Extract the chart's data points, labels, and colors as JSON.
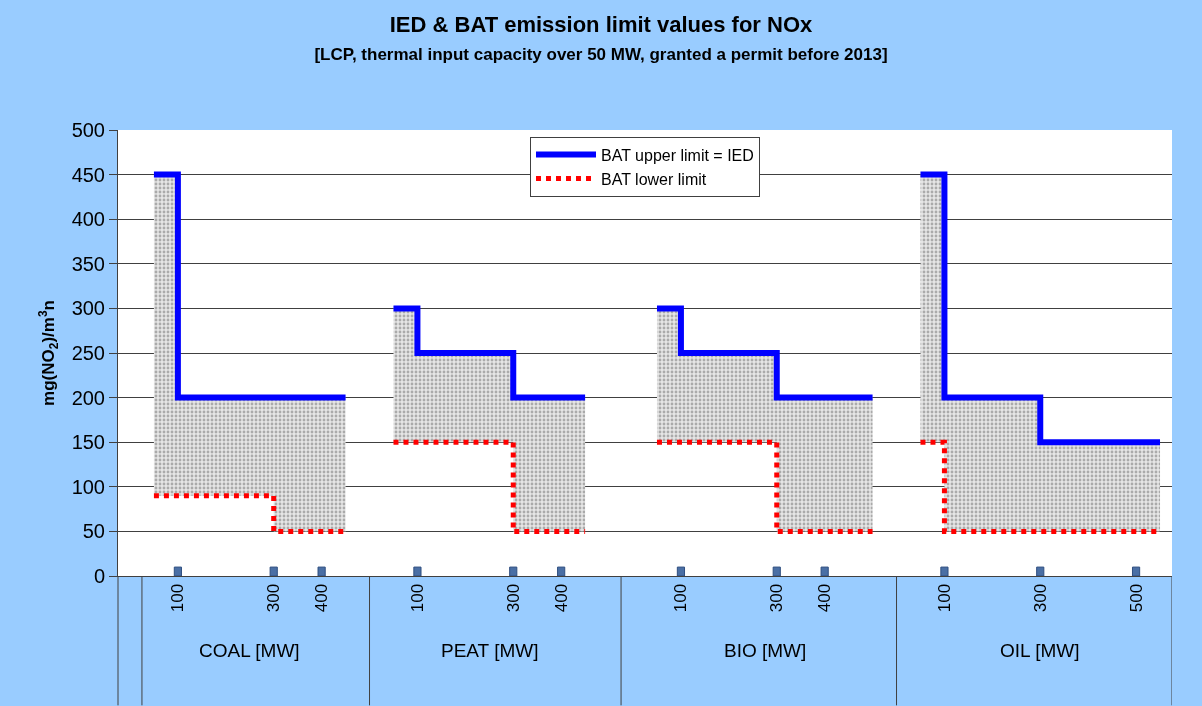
{
  "chart_data": {
    "type": "step",
    "title": "IED & BAT emission limit values for NOx",
    "subtitle": "[LCP, thermal input capacity over 50 MW, granted a permit before 2013]",
    "ylabel": "mg(NO$_{2}$)/m$^{3}$n",
    "categories": [
      null,
      null,
      "100",
      null,
      null,
      null,
      "300",
      null,
      "400",
      null,
      null,
      null,
      "100",
      null,
      null,
      null,
      "300",
      null,
      "400",
      null,
      null,
      null,
      null,
      "100",
      null,
      null,
      null,
      "300",
      null,
      "400",
      null,
      null,
      null,
      null,
      "100",
      null,
      null,
      null,
      "300",
      null,
      null,
      null,
      "500",
      null
    ],
    "annotations": [
      "COAL [MW]",
      "PEAT [MW]",
      "BIO [MW]",
      "OIL [MW]"
    ],
    "ylim": [
      0,
      500
    ],
    "yticks": [
      0,
      50,
      100,
      150,
      200,
      250,
      300,
      350,
      400,
      450,
      500
    ],
    "grid": "y",
    "legend": "top",
    "series": [
      {
        "name": "BAT upper limit = IED",
        "color": "#0000ff",
        "line_style": "solid",
        "values": [
          null,
          450,
          200,
          200,
          200,
          200,
          200,
          200,
          200,
          200,
          null,
          300,
          250,
          250,
          250,
          250,
          200,
          200,
          200,
          200,
          null,
          null,
          300,
          250,
          250,
          250,
          250,
          200,
          200,
          200,
          200,
          200,
          null,
          450,
          200,
          200,
          200,
          200,
          150,
          150,
          150,
          150,
          150,
          150
        ],
        "lower": [
          null,
          90,
          90,
          90,
          90,
          90,
          50,
          50,
          50,
          50,
          null,
          150,
          150,
          150,
          150,
          150,
          50,
          50,
          50,
          50,
          null,
          null,
          150,
          150,
          150,
          150,
          150,
          50,
          50,
          50,
          50,
          50,
          null,
          150,
          50,
          50,
          50,
          50,
          50,
          50,
          50,
          50,
          50,
          50
        ],
        "upper": [
          null,
          450,
          200,
          200,
          200,
          200,
          200,
          200,
          200,
          200,
          null,
          300,
          250,
          250,
          250,
          250,
          200,
          200,
          200,
          200,
          null,
          null,
          300,
          250,
          250,
          250,
          250,
          200,
          200,
          200,
          200,
          200,
          null,
          450,
          200,
          200,
          200,
          200,
          150,
          150,
          150,
          150,
          150,
          150
        ]
      },
      {
        "name": "BAT lower limit",
        "color": "#ff0000",
        "line_style": "dotted",
        "values": [
          null,
          90,
          90,
          90,
          90,
          90,
          50,
          50,
          50,
          50,
          null,
          150,
          150,
          150,
          150,
          150,
          50,
          50,
          50,
          50,
          null,
          null,
          150,
          150,
          150,
          150,
          150,
          50,
          50,
          50,
          50,
          50,
          null,
          150,
          50,
          50,
          50,
          50,
          50,
          50,
          50,
          50,
          50,
          50
        ]
      },
      {
        "type": "bar",
        "color": "#4a6fa5",
        "values": [
          null,
          null,
          10,
          null,
          null,
          null,
          10,
          null,
          10,
          null,
          null,
          null,
          10,
          null,
          null,
          null,
          10,
          null,
          10,
          null,
          null,
          null,
          null,
          10,
          null,
          null,
          null,
          10,
          null,
          10,
          null,
          null,
          null,
          null,
          10,
          null,
          null,
          null,
          10,
          null,
          null,
          null,
          10,
          null
        ]
      }
    ]
  }
}
